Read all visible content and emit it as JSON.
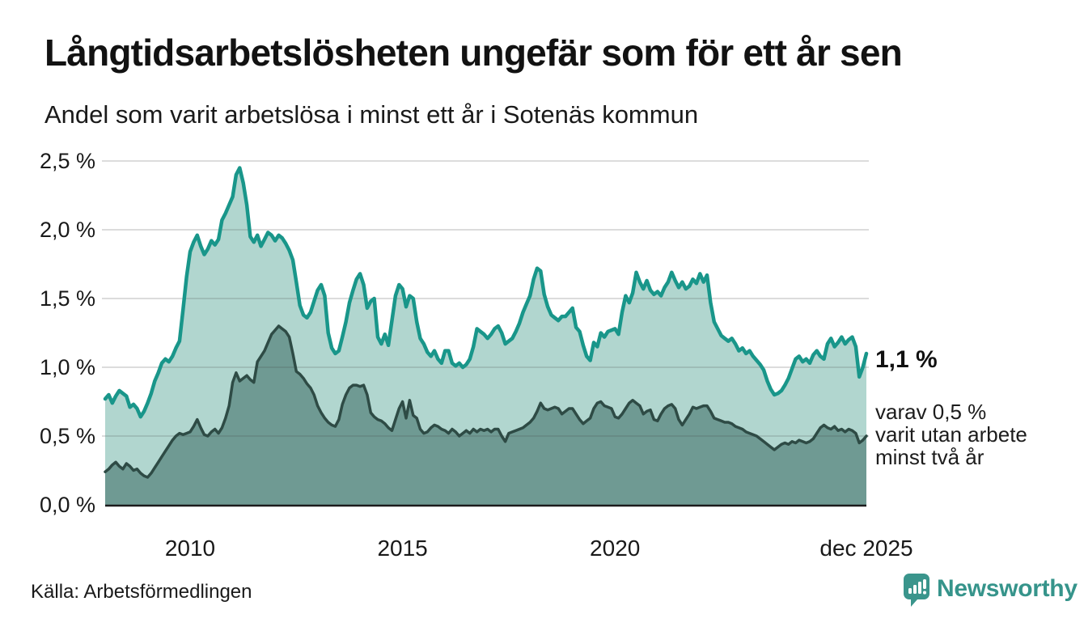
{
  "header": {
    "title": "Långtidsarbetslösheten ungefär som för ett år sen",
    "subtitle": "Andel som varit arbetslösa i minst ett år i Sotenäs kommun"
  },
  "chart_data": {
    "type": "area",
    "unit": "%",
    "frequency": "monthly",
    "start": "2008-01",
    "end": "2025-12",
    "ylim": [
      0,
      2.5
    ],
    "grid": true,
    "colors": {
      "line_1yr": "#19968a",
      "fill_1yr": "#b1d6cf",
      "line_2yr": "#2e4b45",
      "fill_2yr": "#6f9a93",
      "gridline": "#dcdcdc",
      "axis": "#1c1c1c"
    },
    "y_ticks": [
      {
        "label": "0,0 %",
        "value": 0.0
      },
      {
        "label": "0,5 %",
        "value": 0.5
      },
      {
        "label": "1,0 %",
        "value": 1.0
      },
      {
        "label": "1,5 %",
        "value": 1.5
      },
      {
        "label": "2,0 %",
        "value": 2.0
      },
      {
        "label": "2,5 %",
        "value": 2.5
      }
    ],
    "x_ticks": [
      {
        "label": "2010",
        "year": 2010.0
      },
      {
        "label": "2015",
        "year": 2015.0
      },
      {
        "label": "2020",
        "year": 2020.0
      },
      {
        "label": "dec 2025",
        "year": 2025.917
      }
    ],
    "series": [
      {
        "name": "Andel som varit arbetslösa minst ett år",
        "values": [
          0.77,
          0.8,
          0.74,
          0.79,
          0.83,
          0.81,
          0.79,
          0.71,
          0.73,
          0.7,
          0.64,
          0.68,
          0.74,
          0.81,
          0.9,
          0.96,
          1.03,
          1.06,
          1.04,
          1.08,
          1.14,
          1.19,
          1.42,
          1.66,
          1.84,
          1.91,
          1.96,
          1.88,
          1.82,
          1.86,
          1.92,
          1.89,
          1.93,
          2.07,
          2.12,
          2.18,
          2.24,
          2.4,
          2.45,
          2.34,
          2.18,
          1.95,
          1.91,
          1.96,
          1.88,
          1.93,
          1.98,
          1.96,
          1.92,
          1.96,
          1.94,
          1.9,
          1.85,
          1.78,
          1.62,
          1.45,
          1.38,
          1.36,
          1.4,
          1.48,
          1.56,
          1.6,
          1.52,
          1.25,
          1.14,
          1.1,
          1.12,
          1.22,
          1.33,
          1.47,
          1.56,
          1.64,
          1.68,
          1.6,
          1.43,
          1.48,
          1.5,
          1.22,
          1.17,
          1.24,
          1.16,
          1.34,
          1.52,
          1.6,
          1.57,
          1.44,
          1.52,
          1.5,
          1.33,
          1.21,
          1.17,
          1.11,
          1.08,
          1.12,
          1.06,
          1.03,
          1.12,
          1.12,
          1.03,
          1.01,
          1.03,
          1.0,
          1.02,
          1.06,
          1.15,
          1.28,
          1.26,
          1.24,
          1.21,
          1.24,
          1.28,
          1.3,
          1.25,
          1.17,
          1.19,
          1.21,
          1.26,
          1.32,
          1.4,
          1.46,
          1.52,
          1.64,
          1.72,
          1.7,
          1.53,
          1.44,
          1.38,
          1.36,
          1.34,
          1.37,
          1.37,
          1.4,
          1.43,
          1.29,
          1.26,
          1.16,
          1.08,
          1.05,
          1.18,
          1.15,
          1.25,
          1.22,
          1.26,
          1.27,
          1.28,
          1.24,
          1.4,
          1.52,
          1.47,
          1.54,
          1.69,
          1.62,
          1.57,
          1.63,
          1.56,
          1.53,
          1.55,
          1.52,
          1.58,
          1.62,
          1.69,
          1.63,
          1.58,
          1.62,
          1.57,
          1.59,
          1.64,
          1.61,
          1.68,
          1.62,
          1.67,
          1.47,
          1.33,
          1.28,
          1.23,
          1.21,
          1.19,
          1.21,
          1.17,
          1.12,
          1.14,
          1.1,
          1.12,
          1.08,
          1.05,
          1.02,
          0.98,
          0.9,
          0.84,
          0.8,
          0.81,
          0.83,
          0.87,
          0.92,
          0.99,
          1.06,
          1.08,
          1.04,
          1.06,
          1.03,
          1.09,
          1.12,
          1.08,
          1.06,
          1.17,
          1.21,
          1.15,
          1.18,
          1.22,
          1.17,
          1.2,
          1.22,
          1.15,
          0.93,
          1.0,
          1.1
        ]
      },
      {
        "name": "varav arbetslösa minst två år",
        "values": [
          0.24,
          0.26,
          0.29,
          0.31,
          0.28,
          0.26,
          0.3,
          0.28,
          0.25,
          0.26,
          0.23,
          0.21,
          0.2,
          0.23,
          0.27,
          0.31,
          0.35,
          0.39,
          0.43,
          0.47,
          0.5,
          0.52,
          0.51,
          0.52,
          0.53,
          0.57,
          0.62,
          0.56,
          0.51,
          0.5,
          0.53,
          0.55,
          0.52,
          0.56,
          0.63,
          0.72,
          0.89,
          0.96,
          0.9,
          0.92,
          0.94,
          0.91,
          0.89,
          1.04,
          1.08,
          1.12,
          1.18,
          1.24,
          1.27,
          1.3,
          1.28,
          1.26,
          1.22,
          1.1,
          0.97,
          0.95,
          0.92,
          0.88,
          0.85,
          0.8,
          0.72,
          0.67,
          0.63,
          0.6,
          0.58,
          0.57,
          0.62,
          0.73,
          0.8,
          0.85,
          0.87,
          0.87,
          0.86,
          0.87,
          0.8,
          0.67,
          0.64,
          0.62,
          0.61,
          0.59,
          0.56,
          0.54,
          0.62,
          0.7,
          0.75,
          0.63,
          0.76,
          0.65,
          0.63,
          0.55,
          0.52,
          0.53,
          0.56,
          0.58,
          0.57,
          0.55,
          0.54,
          0.52,
          0.55,
          0.53,
          0.5,
          0.52,
          0.54,
          0.52,
          0.55,
          0.53,
          0.55,
          0.54,
          0.55,
          0.53,
          0.55,
          0.55,
          0.5,
          0.46,
          0.52,
          0.53,
          0.54,
          0.55,
          0.56,
          0.58,
          0.6,
          0.63,
          0.68,
          0.74,
          0.7,
          0.69,
          0.7,
          0.71,
          0.7,
          0.66,
          0.68,
          0.7,
          0.7,
          0.66,
          0.62,
          0.59,
          0.61,
          0.63,
          0.7,
          0.74,
          0.75,
          0.72,
          0.71,
          0.7,
          0.64,
          0.63,
          0.66,
          0.7,
          0.74,
          0.76,
          0.74,
          0.72,
          0.66,
          0.68,
          0.69,
          0.62,
          0.61,
          0.66,
          0.7,
          0.72,
          0.73,
          0.7,
          0.62,
          0.58,
          0.62,
          0.66,
          0.71,
          0.7,
          0.71,
          0.72,
          0.72,
          0.68,
          0.63,
          0.62,
          0.61,
          0.6,
          0.6,
          0.59,
          0.57,
          0.56,
          0.55,
          0.53,
          0.52,
          0.51,
          0.5,
          0.48,
          0.46,
          0.44,
          0.42,
          0.4,
          0.42,
          0.44,
          0.45,
          0.44,
          0.46,
          0.45,
          0.47,
          0.46,
          0.45,
          0.46,
          0.48,
          0.52,
          0.56,
          0.58,
          0.56,
          0.55,
          0.57,
          0.54,
          0.55,
          0.53,
          0.55,
          0.54,
          0.52,
          0.45,
          0.47,
          0.5
        ]
      }
    ],
    "annotations": {
      "value_label": "1,1 %",
      "sub_label": "varav 0,5 %\nvarit utan arbete\nminst två år"
    }
  },
  "footer": {
    "source": "Källa: Arbetsförmedlingen",
    "logo_text": "Newsworthy"
  }
}
